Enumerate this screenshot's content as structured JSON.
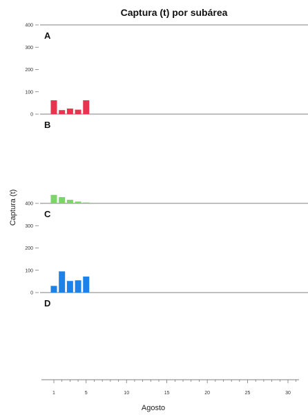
{
  "chart_data": {
    "type": "bar",
    "title": "Captura (t) por subárea",
    "xlabel": "Agosto",
    "ylabel": "Captura (t)",
    "x_ticks": [
      1,
      5,
      10,
      15,
      20,
      25,
      30
    ],
    "xlim": [
      0,
      31
    ],
    "grid": false,
    "panels": [
      {
        "label": "A",
        "color": "#e8344e",
        "ylim": [
          0,
          400
        ],
        "y_ticks": [
          0,
          100,
          200,
          300,
          400
        ],
        "x": [
          1,
          2,
          3,
          4,
          5
        ],
        "values": [
          62,
          18,
          25,
          20,
          62
        ]
      },
      {
        "label": "B",
        "color": "#7ed36b",
        "ylim": [
          0,
          400
        ],
        "y_ticks": [],
        "x": [
          1,
          2,
          3,
          4,
          5
        ],
        "values": [
          38,
          28,
          16,
          8,
          4
        ]
      },
      {
        "label": "C",
        "color": "#1a82e8",
        "ylim": [
          0,
          400
        ],
        "y_ticks": [
          0,
          100,
          200,
          300,
          400
        ],
        "x": [
          1,
          2,
          3,
          4,
          5
        ],
        "values": [
          30,
          95,
          52,
          55,
          72
        ]
      },
      {
        "label": "D",
        "color": "#1a82e8",
        "ylim": [
          0,
          400
        ],
        "y_ticks": [],
        "x": [],
        "values": []
      }
    ]
  }
}
